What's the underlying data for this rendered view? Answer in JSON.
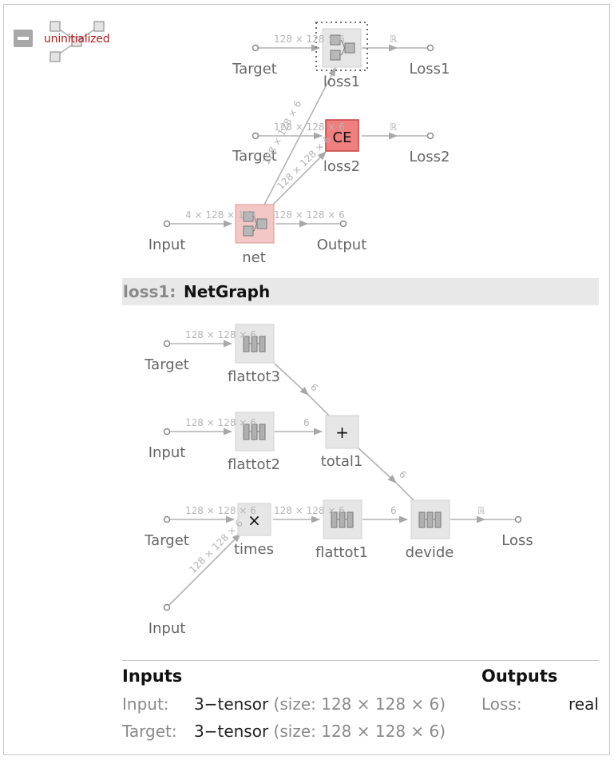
{
  "status": "uninitialized",
  "top_graph": {
    "nodes": {
      "loss1": "loss1",
      "loss2": "loss2",
      "loss2_glyph": "CE",
      "net": "net"
    },
    "ports": {
      "target1": "Target",
      "target2": "Target",
      "input": "Input",
      "loss1_out": "Loss1",
      "loss2_out": "Loss2",
      "output": "Output"
    },
    "edge_labels": {
      "t1": "128 × 128 × 6",
      "t2": "128 × 128 × 6",
      "r1": "ℝ",
      "r2": "ℝ",
      "in": "4 × 128 × 128",
      "out": "128 × 128 × 6",
      "net_loss1": "128 × 128 × 6",
      "net_loss2": "128 × 128 × 6"
    }
  },
  "sub_header": {
    "name": "loss1:",
    "type": "NetGraph"
  },
  "sub_graph": {
    "nodes": {
      "flattot3": "flattot3",
      "flattot2": "flattot2",
      "total1": "total1",
      "total1_glyph": "+",
      "times": "times",
      "times_glyph": "×",
      "flattot1": "flattot1",
      "devide": "devide"
    },
    "ports": {
      "target_a": "Target",
      "input_a": "Input",
      "target_b": "Target",
      "input_b": "Input",
      "loss": "Loss"
    },
    "edge_labels": {
      "ta": "128 × 128 × 6",
      "ia": "128 × 128 × 6",
      "tb": "128 × 128 × 6",
      "ib": "128 × 128 × 6",
      "f3_total": "6",
      "f2_total": "6",
      "total_devide": "6",
      "times_f1": "128 × 128 × 6",
      "f1_devide": "6",
      "devide_loss": "ℝ"
    }
  },
  "io": {
    "inputs_title": "Inputs",
    "outputs_title": "Outputs",
    "inputs": [
      {
        "name": "Input:",
        "type": "3−tensor",
        "detail": "(size: 128 × 128 × 6)"
      },
      {
        "name": "Target:",
        "type": "3−tensor",
        "detail": "(size: 128 × 128 × 6)"
      }
    ],
    "outputs": [
      {
        "name": "Loss:",
        "type": "real"
      }
    ]
  },
  "colors": {
    "ce_node": "#f08080",
    "net_node": "#f4c7c7",
    "status": "#a41f1f"
  }
}
